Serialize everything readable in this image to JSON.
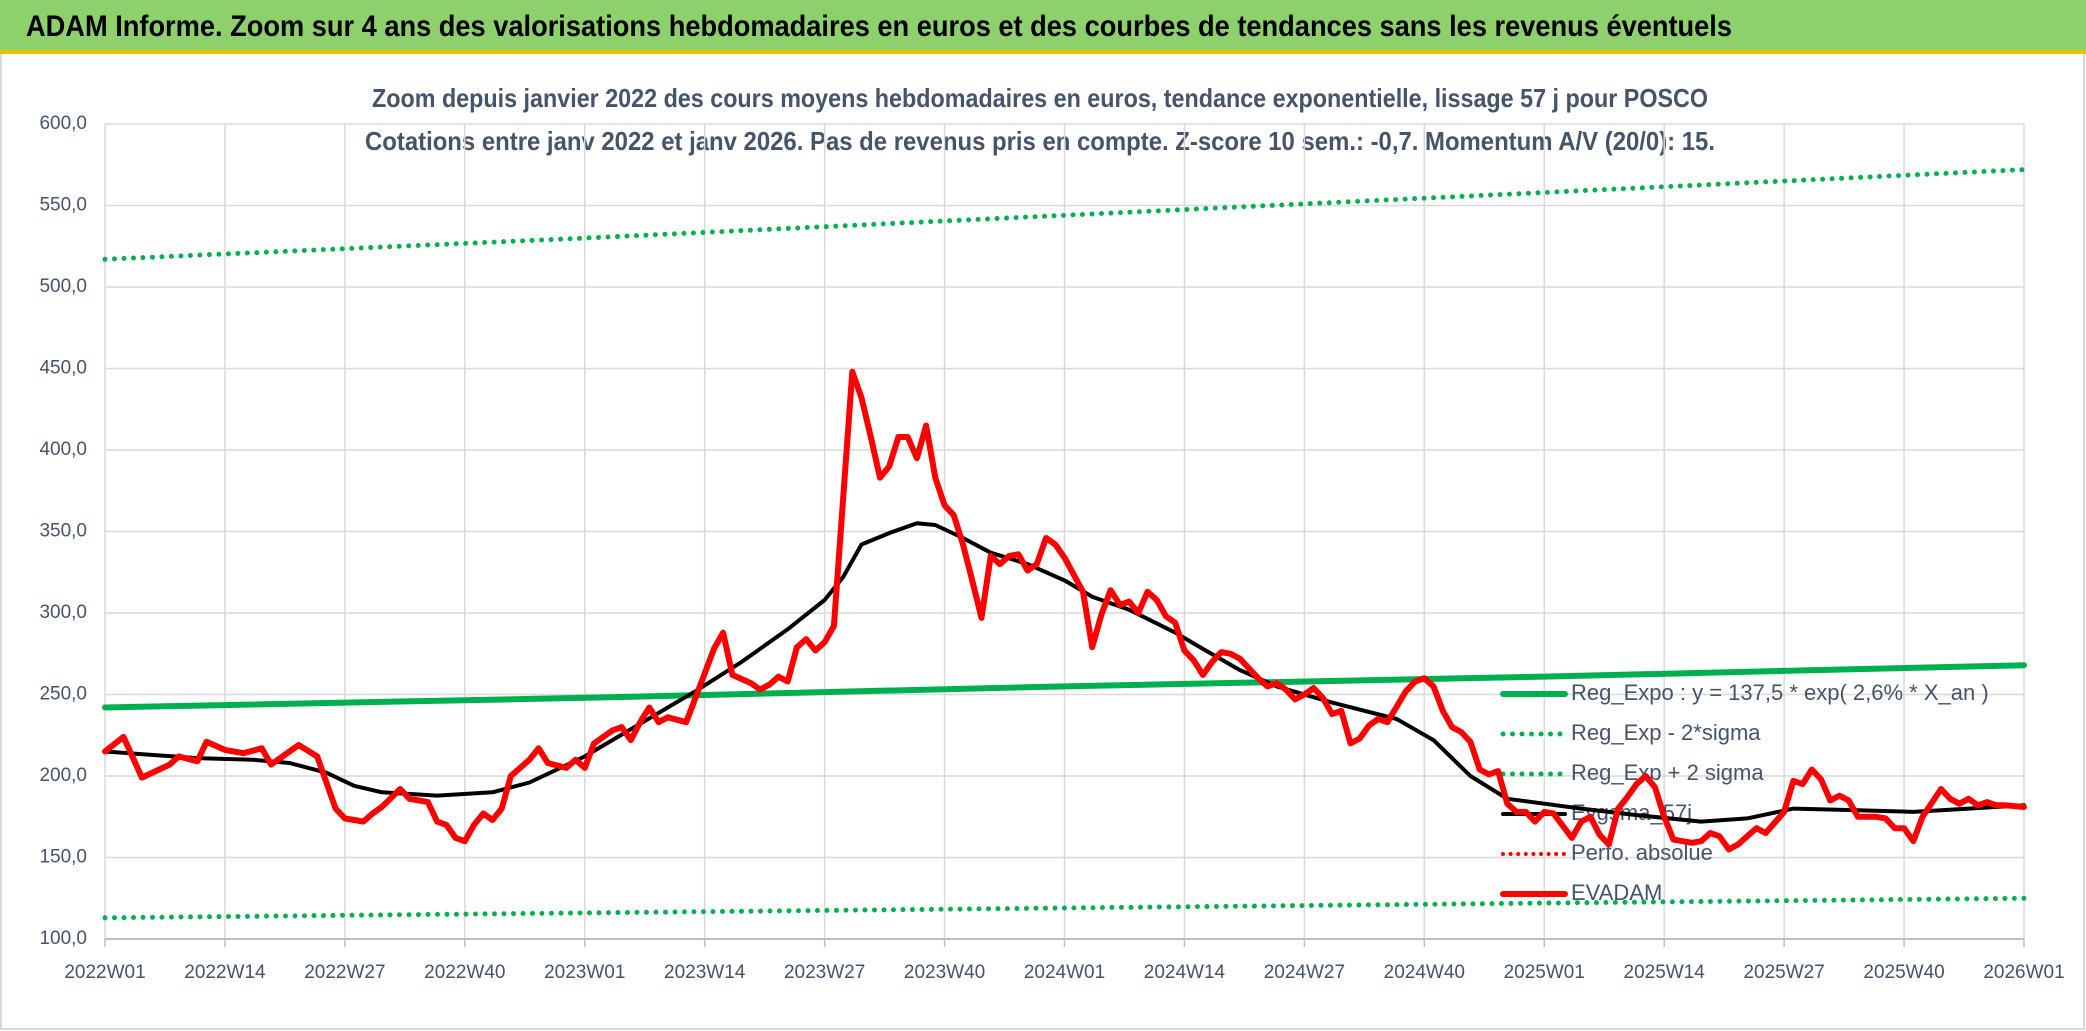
{
  "header": {
    "title": "ADAM Informe. Zoom sur 4 ans des valorisations hebdomadaires en euros et des courbes de tendances sans les revenus éventuels"
  },
  "chart_data": {
    "type": "line",
    "title": "Zoom depuis janvier 2022 des cours moyens hebdomadaires en euros, tendance exponentielle, lissage 57 j pour POSCO",
    "subtitle": "Cotations entre janv 2022 et janv 2026. Pas de revenus pris en compte. Z-score 10 sem.: -0,7. Momentum A/V (20/0): 15.",
    "xlim": [
      0,
      208
    ],
    "xticks": [
      {
        "value": 0,
        "label": "2022W01"
      },
      {
        "value": 13,
        "label": "2022W14"
      },
      {
        "value": 26,
        "label": "2022W27"
      },
      {
        "value": 39,
        "label": "2022W40"
      },
      {
        "value": 52,
        "label": "2023W01"
      },
      {
        "value": 65,
        "label": "2023W14"
      },
      {
        "value": 78,
        "label": "2023W27"
      },
      {
        "value": 91,
        "label": "2023W40"
      },
      {
        "value": 104,
        "label": "2024W01"
      },
      {
        "value": 117,
        "label": "2024W14"
      },
      {
        "value": 130,
        "label": "2024W27"
      },
      {
        "value": 143,
        "label": "2024W40"
      },
      {
        "value": 156,
        "label": "2025W01"
      },
      {
        "value": 169,
        "label": "2025W14"
      },
      {
        "value": 182,
        "label": "2025W27"
      },
      {
        "value": 195,
        "label": "2025W40"
      },
      {
        "value": 208,
        "label": "2026W01"
      }
    ],
    "ylim": [
      100,
      600
    ],
    "yticks": [
      {
        "value": 100,
        "label": "100,0"
      },
      {
        "value": 150,
        "label": "150,0"
      },
      {
        "value": 200,
        "label": "200,0"
      },
      {
        "value": 250,
        "label": "250,0"
      },
      {
        "value": 300,
        "label": "300,0"
      },
      {
        "value": 350,
        "label": "350,0"
      },
      {
        "value": 400,
        "label": "400,0"
      },
      {
        "value": 450,
        "label": "450,0"
      },
      {
        "value": 500,
        "label": "500,0"
      },
      {
        "value": 550,
        "label": "550,0"
      },
      {
        "value": 600,
        "label": "600,0"
      }
    ],
    "grid": true,
    "series": [
      {
        "name": "Reg_Expo : y = 137,5 * exp( 2,6% *  X_an )",
        "color": "#00b050",
        "style": "solid",
        "width": 6,
        "x": [
          0,
          52,
          104,
          156,
          208
        ],
        "values": [
          242,
          248,
          255,
          261,
          268
        ]
      },
      {
        "name": "Reg_Exp - 2*sigma",
        "color": "#00b050",
        "style": "dotted",
        "width": 5,
        "x": [
          0,
          52,
          104,
          156,
          208
        ],
        "values": [
          113,
          116,
          119,
          122,
          125
        ]
      },
      {
        "name": "Reg_Exp + 2 sigma",
        "color": "#00b050",
        "style": "dotted",
        "width": 5,
        "x": [
          0,
          52,
          104,
          156,
          208
        ],
        "values": [
          517,
          530,
          544,
          558,
          572
        ]
      },
      {
        "name": "Evgsma_57j",
        "color": "#000000",
        "style": "solid",
        "width": 4,
        "x": [
          0,
          10,
          16,
          20,
          24,
          27,
          30,
          36,
          42,
          46,
          52,
          58,
          64,
          69,
          74,
          78,
          80,
          82,
          85,
          88,
          90,
          93,
          96,
          100,
          104,
          107,
          111,
          116,
          119,
          123,
          127,
          133,
          140,
          144,
          148,
          152,
          160,
          166,
          173,
          178,
          183,
          190,
          196,
          202,
          208
        ],
        "values": [
          215,
          211,
          210,
          208,
          202,
          194,
          190,
          188,
          190,
          196,
          212,
          232,
          252,
          270,
          290,
          308,
          322,
          342,
          349,
          355,
          354,
          346,
          337,
          330,
          320,
          310,
          302,
          288,
          278,
          265,
          255,
          245,
          235,
          222,
          200,
          186,
          180,
          176,
          172,
          174,
          180,
          179,
          178,
          180,
          182
        ]
      },
      {
        "name": "Perfo. absolue",
        "color": "#ff0000",
        "style": "dotted",
        "width": 4,
        "x": [],
        "values": []
      },
      {
        "name": "EVADAM",
        "color": "#ff0000",
        "style": "solid",
        "width": 6,
        "x": [
          0,
          2,
          4,
          7,
          8,
          10,
          11,
          13,
          15,
          17,
          18,
          20,
          21,
          23,
          24,
          25,
          26,
          27,
          28,
          29,
          30,
          32,
          33,
          35,
          36,
          37,
          38,
          39,
          40,
          41,
          42,
          43,
          44,
          46,
          47,
          48,
          50,
          51,
          52,
          53,
          55,
          56,
          57,
          58,
          59,
          60,
          61,
          63,
          64,
          66,
          67,
          68,
          70,
          71,
          72,
          73,
          74,
          75,
          76,
          77,
          78,
          79,
          80,
          81,
          82,
          83,
          84,
          85,
          86,
          87,
          88,
          89,
          90,
          91,
          92,
          93,
          94,
          95,
          96,
          97,
          98,
          99,
          100,
          101,
          102,
          103,
          104,
          106,
          107,
          108,
          109,
          110,
          111,
          112,
          113,
          114,
          115,
          116,
          117,
          118,
          119,
          120,
          121,
          122,
          123,
          125,
          126,
          127,
          128,
          129,
          130,
          131,
          132,
          133,
          134,
          135,
          136,
          137,
          138,
          139,
          141,
          142,
          143,
          144,
          145,
          146,
          147,
          148,
          149,
          150,
          151,
          152,
          153,
          154,
          155,
          156,
          157,
          159,
          160,
          161,
          162,
          163,
          164,
          165,
          166,
          167,
          168,
          169,
          170,
          172,
          173,
          174,
          175,
          176,
          177,
          178,
          179,
          180,
          182,
          183,
          184,
          185,
          186,
          187,
          188,
          189,
          190,
          192,
          193,
          194,
          195,
          196,
          197,
          199,
          200,
          201,
          202,
          203,
          204,
          205,
          206,
          208
        ],
        "values": [
          215,
          224,
          199,
          207,
          212,
          209,
          221,
          216,
          214,
          217,
          207,
          215,
          219,
          212,
          196,
          180,
          174,
          173,
          172,
          177,
          181,
          192,
          186,
          184,
          172,
          170,
          162,
          160,
          170,
          177,
          173,
          180,
          200,
          210,
          217,
          208,
          205,
          210,
          205,
          220,
          228,
          230,
          222,
          233,
          242,
          233,
          236,
          233,
          248,
          278,
          288,
          262,
          257,
          253,
          256,
          261,
          258,
          279,
          284,
          277,
          282,
          292,
          370,
          448,
          432,
          408,
          383,
          390,
          408,
          408,
          395,
          415,
          383,
          366,
          360,
          342,
          320,
          297,
          335,
          330,
          335,
          336,
          326,
          330,
          346,
          342,
          334,
          313,
          279,
          299,
          314,
          305,
          307,
          300,
          313,
          308,
          298,
          294,
          277,
          271,
          262,
          270,
          276,
          275,
          272,
          260,
          255,
          257,
          253,
          247,
          250,
          254,
          248,
          238,
          240,
          220,
          223,
          231,
          235,
          233,
          252,
          258,
          260,
          255,
          240,
          230,
          227,
          221,
          204,
          201,
          203,
          183,
          178,
          178,
          172,
          178,
          177,
          162,
          172,
          175,
          164,
          158,
          180,
          187,
          195,
          200,
          193,
          175,
          161,
          159,
          160,
          165,
          163,
          155,
          158,
          163,
          168,
          165,
          178,
          197,
          195,
          204,
          198,
          185,
          188,
          185,
          175,
          175,
          174,
          168,
          168,
          160,
          175,
          192,
          186,
          183,
          186,
          182,
          184,
          182,
          182,
          181
        ]
      }
    ],
    "legend": "right"
  }
}
